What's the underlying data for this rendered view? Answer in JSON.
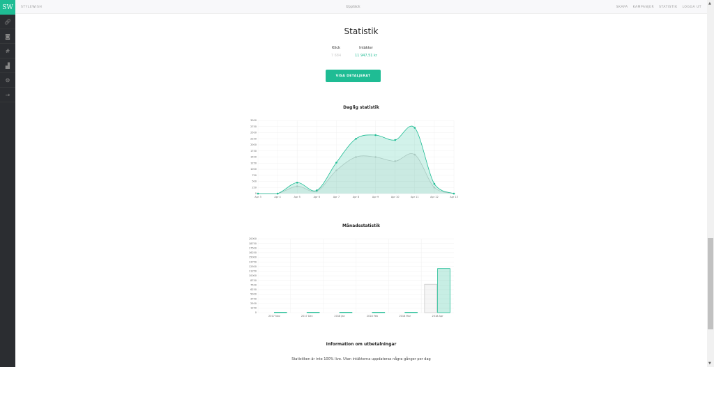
{
  "app": {
    "logo": "SW",
    "brand": "STYLEWISH",
    "title": "Upptäck",
    "nav": [
      "SKAPA",
      "KAMPANJER",
      "STATISTIK",
      "LOGGA UT"
    ]
  },
  "sidebar": {
    "icons": [
      "link-icon",
      "camera-icon",
      "hashtag-icon",
      "chart-icon",
      "gear-icon",
      "logout-icon"
    ]
  },
  "main": {
    "title": "Statistik",
    "clicks_label": "Klick",
    "clicks_value": "7 684",
    "revenue_label": "Intäkter",
    "revenue_value": "11 947,51 kr",
    "button": "VISA DETALJERAT",
    "daily_title": "Daglig statistik",
    "monthly_title": "Månadsstatistik",
    "info_title": "Information om utbetalningar",
    "info_text": "Statistiken är inte 100% live. Utan intäkterna uppdateras några gånger per dag"
  },
  "colors": {
    "accent": "#1fbc94",
    "gray": "#cccccc"
  },
  "chart_data": [
    {
      "type": "area",
      "title": "Daglig statistik",
      "categories": [
        "Apr 3",
        "Apr 4",
        "Apr 5",
        "Apr 6",
        "Apr 7",
        "Apr 8",
        "Apr 9",
        "Apr 10",
        "Apr 11",
        "Apr 12",
        "Apr 13"
      ],
      "yticks": [
        0,
        250,
        500,
        750,
        1000,
        1250,
        1500,
        1750,
        2000,
        2250,
        2500,
        2750,
        3000
      ],
      "ylim": [
        0,
        3000
      ],
      "grid": true,
      "series": [
        {
          "color": "#1fbc94",
          "values": [
            0,
            0,
            450,
            130,
            1270,
            2250,
            2400,
            2200,
            2700,
            400,
            0
          ]
        },
        {
          "color": "#cccccc",
          "values": [
            0,
            0,
            300,
            100,
            950,
            1500,
            1500,
            1330,
            1600,
            250,
            0
          ]
        }
      ]
    },
    {
      "type": "bar",
      "title": "Månadsstatistik",
      "categories": [
        "2017 Nov",
        "2017 Dec",
        "2018 Jan",
        "2018 Feb",
        "2018 Mar",
        "2018 Apr"
      ],
      "yticks": [
        0,
        1250,
        2500,
        3750,
        5000,
        6250,
        7500,
        8750,
        10000,
        11250,
        12500,
        13750,
        15000,
        16250,
        17500,
        18750,
        20000
      ],
      "ylim": [
        0,
        20000
      ],
      "grid": true,
      "series": [
        {
          "color": "#cccccc",
          "values": [
            0,
            0,
            0,
            0,
            0,
            7684
          ]
        },
        {
          "color": "#1fbc94",
          "values": [
            100,
            100,
            100,
            100,
            100,
            11948
          ]
        }
      ]
    }
  ]
}
